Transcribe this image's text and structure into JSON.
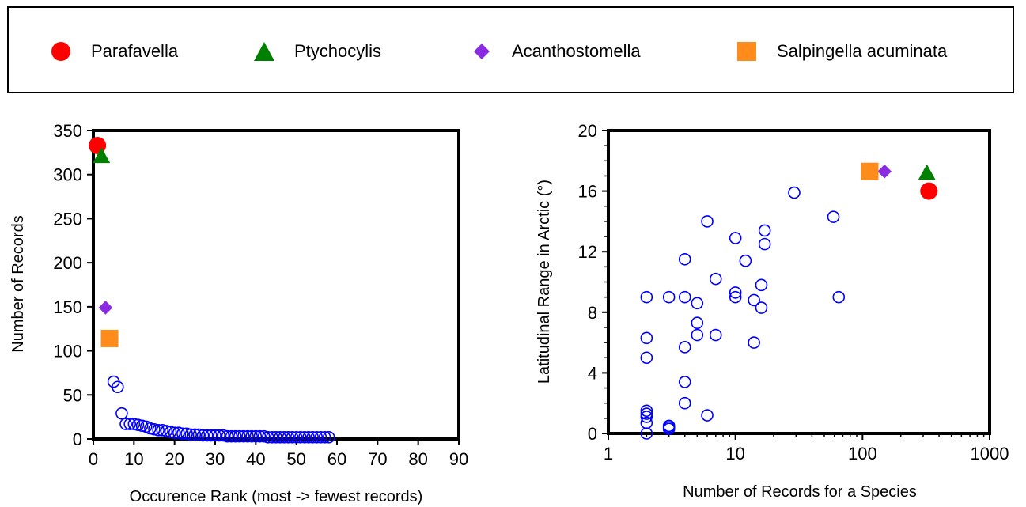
{
  "legend": {
    "items": [
      {
        "label": "Parafavella",
        "marker": "circle",
        "color": "#ff0000"
      },
      {
        "label": "Ptychocylis",
        "marker": "triangle",
        "color": "#008000"
      },
      {
        "label": "Acanthostomella",
        "marker": "diamond",
        "color": "#8a2be2"
      },
      {
        "label": "Salpingella acuminata",
        "marker": "square",
        "color": "#ff8c1a"
      }
    ]
  },
  "chart_data": [
    {
      "type": "scatter",
      "xlabel": "Occurence Rank (most -> fewest records)",
      "ylabel": "Number of Records",
      "xlim": [
        0,
        90
      ],
      "ylim": [
        0,
        350
      ],
      "xticks": [
        "0",
        "10",
        "20",
        "30",
        "40",
        "50",
        "60",
        "70",
        "80",
        "90"
      ],
      "yticks": [
        "0",
        "50",
        "100",
        "150",
        "200",
        "250",
        "300",
        "350"
      ],
      "grid": false,
      "highlighted": [
        {
          "name": "Parafavella",
          "x": 1,
          "y": 333
        },
        {
          "name": "Ptychocylis",
          "x": 2,
          "y": 321
        },
        {
          "name": "Acanthostomella",
          "x": 3,
          "y": 149
        },
        {
          "name": "Salpingella acuminata",
          "x": 4,
          "y": 114
        }
      ],
      "series": [
        {
          "marker": "open-circle",
          "color": "#0000ff",
          "x": [
            5,
            6,
            7,
            8,
            9,
            10,
            11,
            12,
            13,
            14,
            15,
            16,
            17,
            18,
            19,
            20,
            21,
            22,
            23,
            24,
            25,
            26,
            27,
            28,
            29,
            30,
            31,
            32,
            33,
            34,
            35,
            36,
            37,
            38,
            39,
            40,
            41,
            42,
            43,
            44,
            45,
            46,
            47,
            48,
            49,
            50,
            51,
            52,
            53,
            54,
            55,
            56,
            57,
            58
          ],
          "y": [
            65,
            59,
            29,
            17,
            17,
            17,
            16,
            15,
            14,
            12,
            11,
            10,
            10,
            9,
            8,
            7,
            7,
            6,
            6,
            5,
            5,
            5,
            4,
            4,
            4,
            4,
            4,
            4,
            3,
            3,
            3,
            3,
            3,
            3,
            3,
            3,
            3,
            3,
            2,
            2,
            2,
            2,
            2,
            2,
            2,
            2,
            2,
            2,
            2,
            2,
            2,
            2,
            2,
            2
          ]
        }
      ]
    },
    {
      "type": "scatter",
      "xlabel": "Number of Records for a Species",
      "ylabel": "Latitudinal Range in Arctic (°)",
      "xscale": "log",
      "xlim": [
        1,
        1000
      ],
      "ylim": [
        0,
        20
      ],
      "xticks": [
        "1",
        "10",
        "100",
        "1000"
      ],
      "yticks": [
        "0",
        "4",
        "8",
        "12",
        "16",
        "20"
      ],
      "grid": false,
      "highlighted": [
        {
          "name": "Parafavella",
          "x": 333,
          "y": 16.0
        },
        {
          "name": "Ptychocylis",
          "x": 321,
          "y": 17.2
        },
        {
          "name": "Acanthostomella",
          "x": 149,
          "y": 17.3
        },
        {
          "name": "Salpingella acuminata",
          "x": 114,
          "y": 17.3
        }
      ],
      "series": [
        {
          "marker": "open-circle",
          "color": "#0000ff",
          "x": [
            2,
            2,
            2,
            2,
            2,
            2,
            2,
            2,
            3,
            3,
            3,
            3,
            4,
            4,
            4,
            4,
            4,
            5,
            5,
            5,
            6,
            6,
            7,
            7,
            10,
            10,
            10,
            12,
            14,
            14,
            16,
            16,
            17,
            17,
            29,
            59,
            65
          ],
          "y": [
            0,
            0.7,
            1.1,
            1.5,
            5.0,
            6.3,
            9.0,
            1.3,
            0.3,
            0.5,
            0.4,
            9.0,
            2.0,
            3.4,
            5.7,
            9.0,
            11.5,
            6.5,
            7.3,
            8.6,
            1.2,
            14.0,
            6.5,
            10.2,
            9.0,
            9.3,
            12.9,
            11.4,
            6.0,
            8.8,
            8.3,
            9.8,
            12.5,
            13.4,
            15.9,
            14.3,
            9.0
          ]
        }
      ]
    }
  ]
}
